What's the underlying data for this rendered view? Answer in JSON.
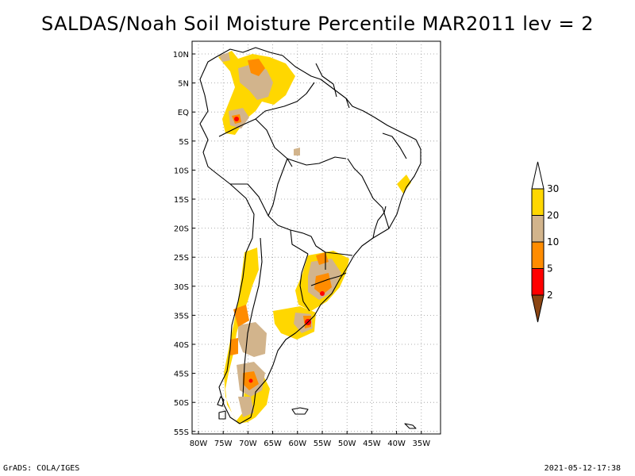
{
  "title": "SALDAS/Noah Soil Moisture Percentile MAR2011 lev = 2",
  "lat_labels": [
    "10N",
    "5N",
    "EQ",
    "5S",
    "10S",
    "15S",
    "20S",
    "25S",
    "30S",
    "35S",
    "40S",
    "45S",
    "50S",
    "55S"
  ],
  "lon_labels": [
    "80W",
    "75W",
    "70W",
    "65W",
    "60W",
    "55W",
    "50W",
    "45W",
    "40W",
    "35W"
  ],
  "colorbar": {
    "levels": [
      "2",
      "5",
      "10",
      "20",
      "30"
    ],
    "colors": [
      "#8b4513",
      "#ff0000",
      "#ff8c00",
      "#d2b48c",
      "#ffd700",
      "#ffffff"
    ]
  },
  "footer_left": "GrADS: COLA/IGES",
  "footer_right": "2021-05-12-17:38"
}
